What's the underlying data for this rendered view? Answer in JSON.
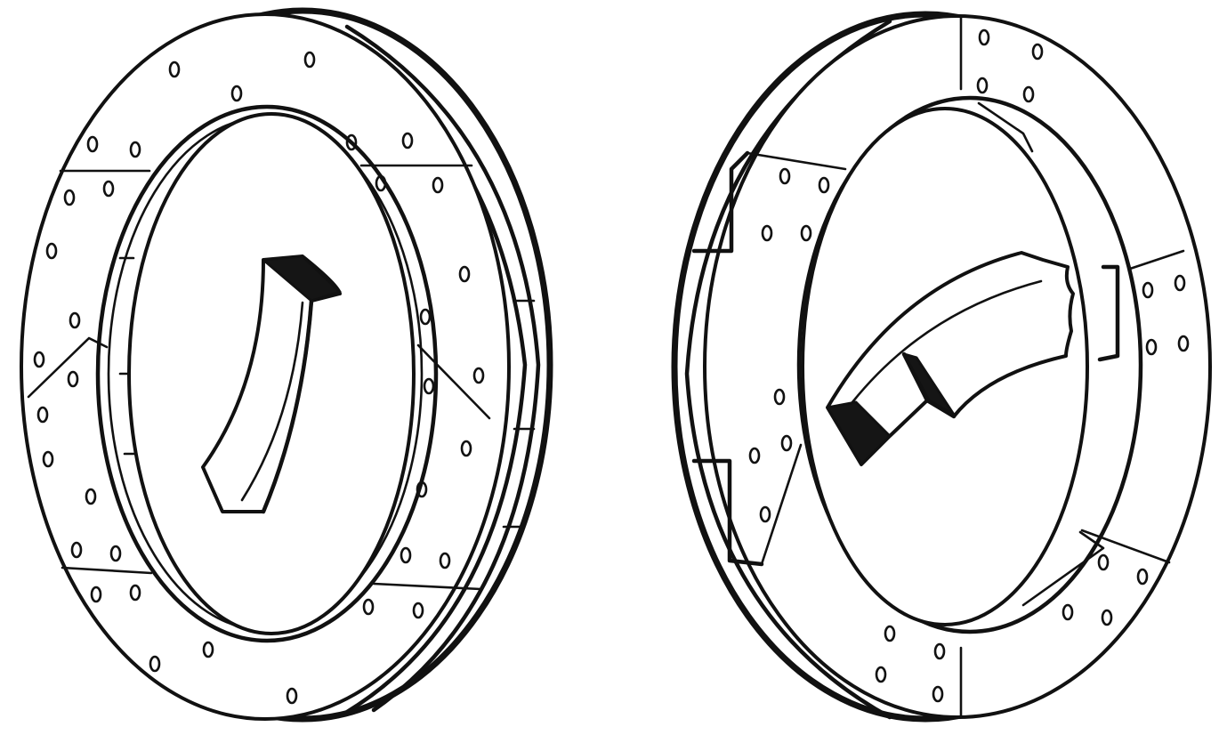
{
  "figure": {
    "panels": [
      {
        "name": "left-disc-assembly",
        "fill": "#ffffff",
        "stroke": "#111111"
      },
      {
        "name": "right-disc-assembly",
        "fill": "#ffffff",
        "stroke": "#111111"
      }
    ]
  }
}
